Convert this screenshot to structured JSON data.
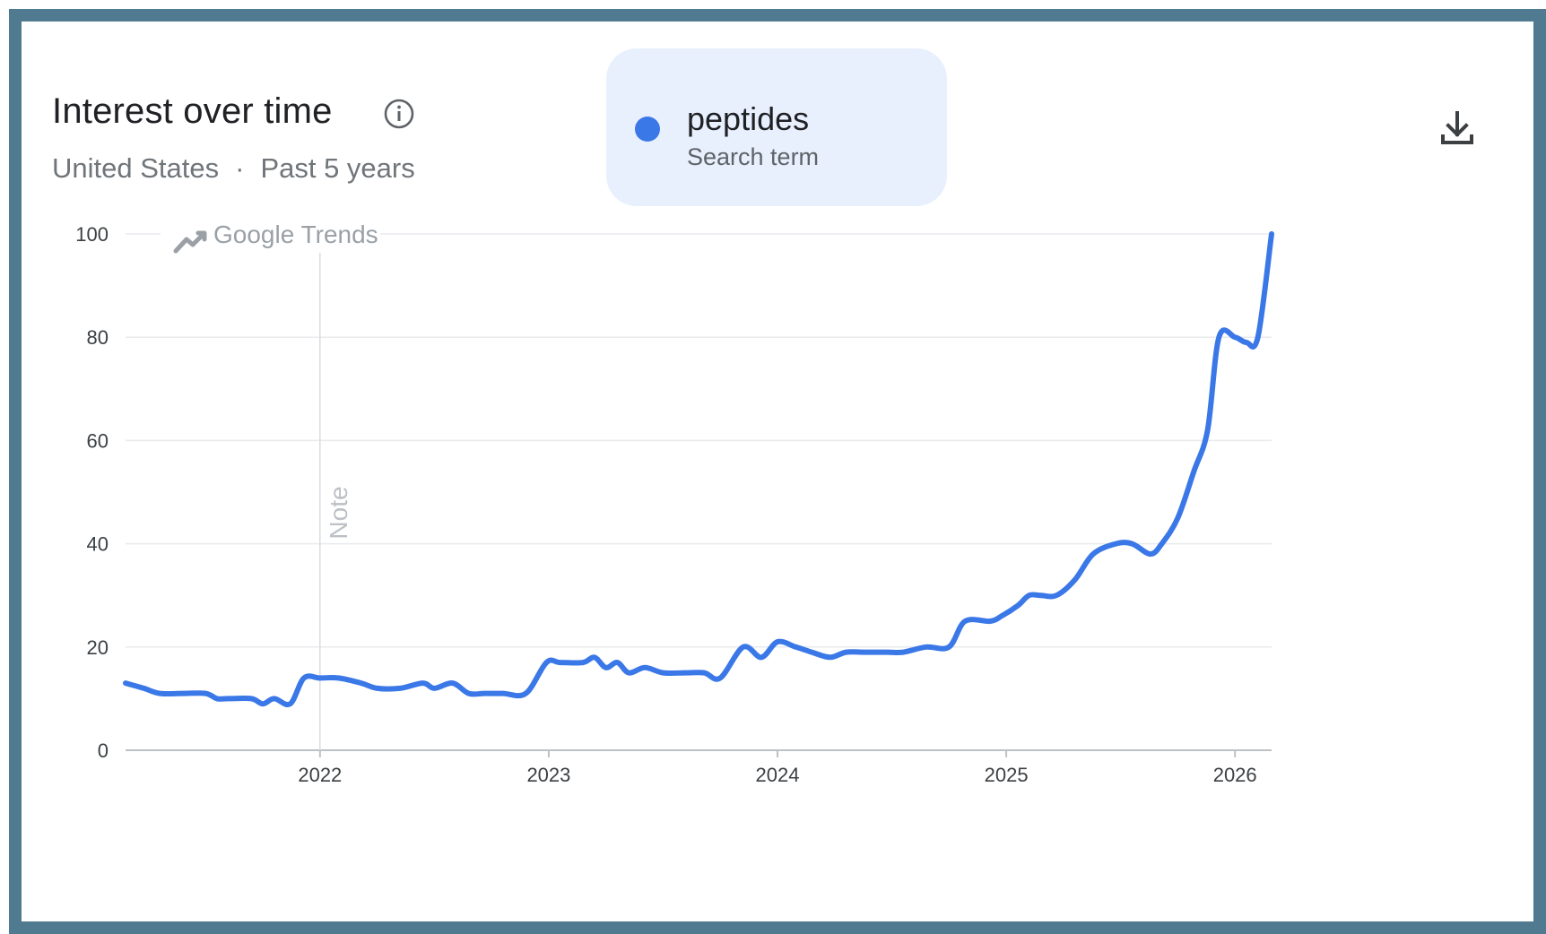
{
  "header": {
    "title": "Interest over time",
    "region": "United States",
    "separator": "·",
    "timeframe": "Past 5 years"
  },
  "term": {
    "name": "peptides",
    "kind": "Search term",
    "color": "#3b78e7"
  },
  "watermark": "Google Trends",
  "note_label": "Note",
  "icons": {
    "info": "info-icon",
    "download": "download-icon",
    "watermark": "trend-arrow-icon"
  },
  "chart_data": {
    "type": "line",
    "title": "",
    "xlabel": "",
    "ylabel": "",
    "ylim": [
      0,
      100
    ],
    "xlim": [
      2021.15,
      2026.16
    ],
    "y_ticks": [
      0,
      20,
      40,
      60,
      80,
      100
    ],
    "x_ticks": [
      2022,
      2023,
      2024,
      2025,
      2026
    ],
    "x_tick_labels": [
      "2022",
      "2023",
      "2024",
      "2025",
      "2026"
    ],
    "grid": true,
    "note_x": 2022,
    "series": [
      {
        "name": "peptides",
        "color": "#3b78e7",
        "x": [
          2021.15,
          2021.23,
          2021.3,
          2021.4,
          2021.5,
          2021.55,
          2021.6,
          2021.7,
          2021.75,
          2021.8,
          2021.87,
          2021.93,
          2022.0,
          2022.08,
          2022.18,
          2022.25,
          2022.35,
          2022.45,
          2022.5,
          2022.58,
          2022.65,
          2022.72,
          2022.8,
          2022.9,
          2022.99,
          2023.05,
          2023.15,
          2023.2,
          2023.25,
          2023.3,
          2023.35,
          2023.42,
          2023.5,
          2023.6,
          2023.68,
          2023.75,
          2023.85,
          2023.93,
          2024.0,
          2024.08,
          2024.15,
          2024.23,
          2024.3,
          2024.38,
          2024.48,
          2024.55,
          2024.65,
          2024.75,
          2024.82,
          2024.93,
          2024.98,
          2025.05,
          2025.1,
          2025.15,
          2025.22,
          2025.3,
          2025.38,
          2025.48,
          2025.55,
          2025.63,
          2025.68,
          2025.75,
          2025.82,
          2025.88,
          2025.93,
          2026.0,
          2026.05,
          2026.1,
          2026.16
        ],
        "values": [
          13,
          12,
          11,
          11,
          11,
          10,
          10,
          10,
          9,
          10,
          9,
          14,
          14,
          14,
          13,
          12,
          12,
          13,
          12,
          13,
          11,
          11,
          11,
          11,
          17,
          17,
          17,
          18,
          16,
          17,
          15,
          16,
          15,
          15,
          15,
          14,
          20,
          18,
          21,
          20,
          19,
          18,
          19,
          19,
          19,
          19,
          20,
          20,
          25,
          25,
          26,
          28,
          30,
          30,
          30,
          33,
          38,
          40,
          40,
          38,
          40,
          45,
          54,
          62,
          80,
          80,
          79,
          80,
          100
        ]
      }
    ]
  }
}
